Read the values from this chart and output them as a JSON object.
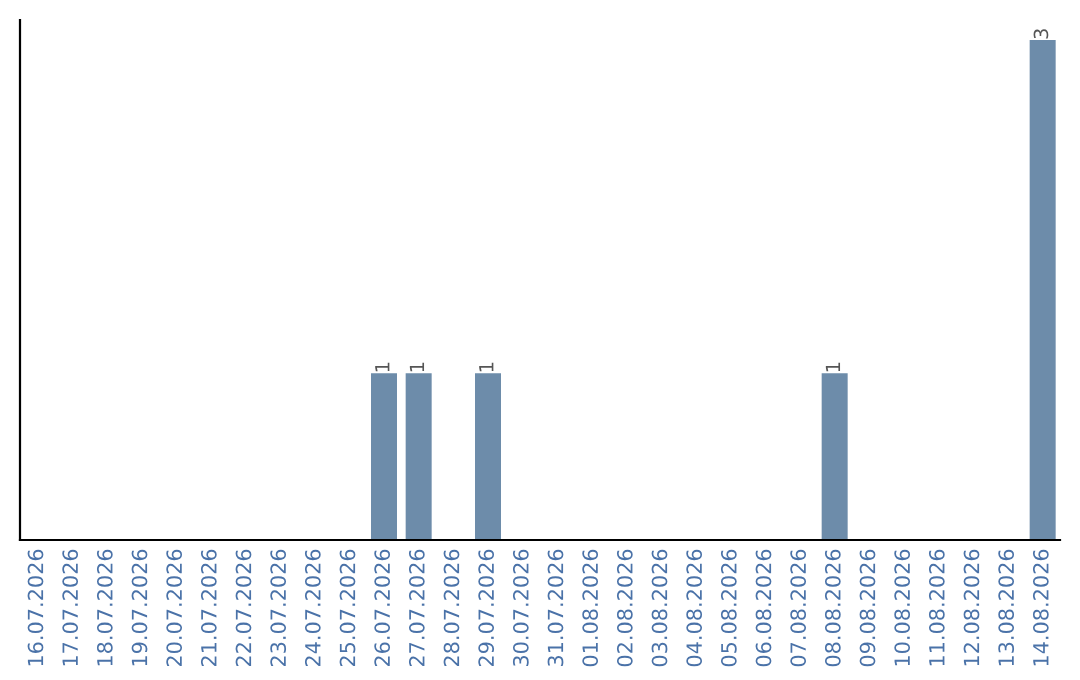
{
  "chart_data": {
    "type": "bar",
    "categories": [
      "16.07.2026",
      "17.07.2026",
      "18.07.2026",
      "19.07.2026",
      "20.07.2026",
      "21.07.2026",
      "22.07.2026",
      "23.07.2026",
      "24.07.2026",
      "25.07.2026",
      "26.07.2026",
      "27.07.2026",
      "28.07.2026",
      "29.07.2026",
      "30.07.2026",
      "31.07.2026",
      "01.08.2026",
      "02.08.2026",
      "03.08.2026",
      "04.08.2026",
      "05.08.2026",
      "06.08.2026",
      "07.08.2026",
      "08.08.2026",
      "09.08.2026",
      "10.08.2026",
      "11.08.2026",
      "12.08.2026",
      "13.08.2026",
      "14.08.2026"
    ],
    "values": [
      0,
      0,
      0,
      0,
      0,
      0,
      0,
      0,
      0,
      0,
      1,
      1,
      0,
      1,
      0,
      0,
      0,
      0,
      0,
      0,
      0,
      0,
      0,
      1,
      0,
      0,
      0,
      0,
      0,
      3
    ],
    "value_labels": [
      null,
      null,
      null,
      null,
      null,
      null,
      null,
      null,
      null,
      null,
      "1",
      "1",
      null,
      "1",
      null,
      null,
      null,
      null,
      null,
      null,
      null,
      null,
      null,
      "1",
      null,
      null,
      null,
      null,
      null,
      "3"
    ],
    "color": "#6d8caa",
    "ylim": [
      0,
      3.12
    ],
    "tick_labels": "x",
    "grid": false,
    "legend": false
  }
}
